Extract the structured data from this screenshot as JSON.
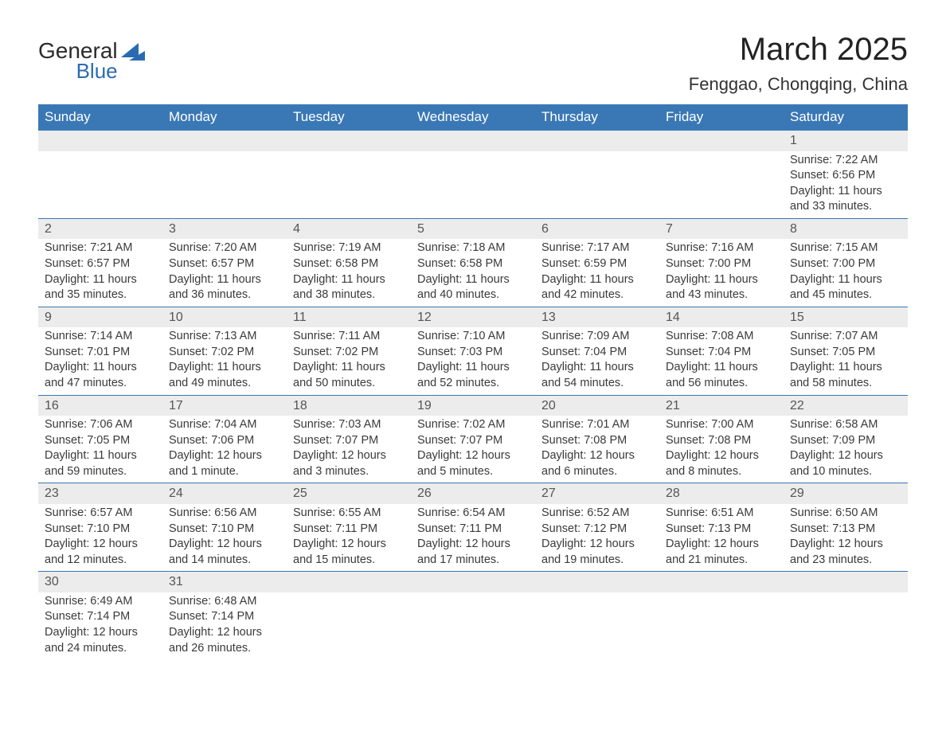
{
  "logo": {
    "text1": "General",
    "text2": "Blue",
    "text1_color": "#2b2b2b",
    "text2_color": "#2a6bb0",
    "mark_color": "#2a6bb0"
  },
  "title": {
    "month": "March 2025",
    "location": "Fenggao, Chongqing, China",
    "month_fontsize": 40,
    "location_fontsize": 22
  },
  "colors": {
    "header_bg": "#3a78b5",
    "header_text": "#ffffff",
    "daynum_bg": "#ececec",
    "row_divider": "#3a78b5",
    "body_text": "#3a3a3a",
    "background": "#ffffff"
  },
  "typography": {
    "header_fontsize": 17,
    "cell_fontsize": 14.5,
    "daynum_fontsize": 16,
    "font_family": "Arial"
  },
  "calendar": {
    "day_headers": [
      "Sunday",
      "Monday",
      "Tuesday",
      "Wednesday",
      "Thursday",
      "Friday",
      "Saturday"
    ],
    "weeks": [
      [
        null,
        null,
        null,
        null,
        null,
        null,
        {
          "n": "1",
          "sunrise": "Sunrise: 7:22 AM",
          "sunset": "Sunset: 6:56 PM",
          "dl1": "Daylight: 11 hours",
          "dl2": "and 33 minutes."
        }
      ],
      [
        {
          "n": "2",
          "sunrise": "Sunrise: 7:21 AM",
          "sunset": "Sunset: 6:57 PM",
          "dl1": "Daylight: 11 hours",
          "dl2": "and 35 minutes."
        },
        {
          "n": "3",
          "sunrise": "Sunrise: 7:20 AM",
          "sunset": "Sunset: 6:57 PM",
          "dl1": "Daylight: 11 hours",
          "dl2": "and 36 minutes."
        },
        {
          "n": "4",
          "sunrise": "Sunrise: 7:19 AM",
          "sunset": "Sunset: 6:58 PM",
          "dl1": "Daylight: 11 hours",
          "dl2": "and 38 minutes."
        },
        {
          "n": "5",
          "sunrise": "Sunrise: 7:18 AM",
          "sunset": "Sunset: 6:58 PM",
          "dl1": "Daylight: 11 hours",
          "dl2": "and 40 minutes."
        },
        {
          "n": "6",
          "sunrise": "Sunrise: 7:17 AM",
          "sunset": "Sunset: 6:59 PM",
          "dl1": "Daylight: 11 hours",
          "dl2": "and 42 minutes."
        },
        {
          "n": "7",
          "sunrise": "Sunrise: 7:16 AM",
          "sunset": "Sunset: 7:00 PM",
          "dl1": "Daylight: 11 hours",
          "dl2": "and 43 minutes."
        },
        {
          "n": "8",
          "sunrise": "Sunrise: 7:15 AM",
          "sunset": "Sunset: 7:00 PM",
          "dl1": "Daylight: 11 hours",
          "dl2": "and 45 minutes."
        }
      ],
      [
        {
          "n": "9",
          "sunrise": "Sunrise: 7:14 AM",
          "sunset": "Sunset: 7:01 PM",
          "dl1": "Daylight: 11 hours",
          "dl2": "and 47 minutes."
        },
        {
          "n": "10",
          "sunrise": "Sunrise: 7:13 AM",
          "sunset": "Sunset: 7:02 PM",
          "dl1": "Daylight: 11 hours",
          "dl2": "and 49 minutes."
        },
        {
          "n": "11",
          "sunrise": "Sunrise: 7:11 AM",
          "sunset": "Sunset: 7:02 PM",
          "dl1": "Daylight: 11 hours",
          "dl2": "and 50 minutes."
        },
        {
          "n": "12",
          "sunrise": "Sunrise: 7:10 AM",
          "sunset": "Sunset: 7:03 PM",
          "dl1": "Daylight: 11 hours",
          "dl2": "and 52 minutes."
        },
        {
          "n": "13",
          "sunrise": "Sunrise: 7:09 AM",
          "sunset": "Sunset: 7:04 PM",
          "dl1": "Daylight: 11 hours",
          "dl2": "and 54 minutes."
        },
        {
          "n": "14",
          "sunrise": "Sunrise: 7:08 AM",
          "sunset": "Sunset: 7:04 PM",
          "dl1": "Daylight: 11 hours",
          "dl2": "and 56 minutes."
        },
        {
          "n": "15",
          "sunrise": "Sunrise: 7:07 AM",
          "sunset": "Sunset: 7:05 PM",
          "dl1": "Daylight: 11 hours",
          "dl2": "and 58 minutes."
        }
      ],
      [
        {
          "n": "16",
          "sunrise": "Sunrise: 7:06 AM",
          "sunset": "Sunset: 7:05 PM",
          "dl1": "Daylight: 11 hours",
          "dl2": "and 59 minutes."
        },
        {
          "n": "17",
          "sunrise": "Sunrise: 7:04 AM",
          "sunset": "Sunset: 7:06 PM",
          "dl1": "Daylight: 12 hours",
          "dl2": "and 1 minute."
        },
        {
          "n": "18",
          "sunrise": "Sunrise: 7:03 AM",
          "sunset": "Sunset: 7:07 PM",
          "dl1": "Daylight: 12 hours",
          "dl2": "and 3 minutes."
        },
        {
          "n": "19",
          "sunrise": "Sunrise: 7:02 AM",
          "sunset": "Sunset: 7:07 PM",
          "dl1": "Daylight: 12 hours",
          "dl2": "and 5 minutes."
        },
        {
          "n": "20",
          "sunrise": "Sunrise: 7:01 AM",
          "sunset": "Sunset: 7:08 PM",
          "dl1": "Daylight: 12 hours",
          "dl2": "and 6 minutes."
        },
        {
          "n": "21",
          "sunrise": "Sunrise: 7:00 AM",
          "sunset": "Sunset: 7:08 PM",
          "dl1": "Daylight: 12 hours",
          "dl2": "and 8 minutes."
        },
        {
          "n": "22",
          "sunrise": "Sunrise: 6:58 AM",
          "sunset": "Sunset: 7:09 PM",
          "dl1": "Daylight: 12 hours",
          "dl2": "and 10 minutes."
        }
      ],
      [
        {
          "n": "23",
          "sunrise": "Sunrise: 6:57 AM",
          "sunset": "Sunset: 7:10 PM",
          "dl1": "Daylight: 12 hours",
          "dl2": "and 12 minutes."
        },
        {
          "n": "24",
          "sunrise": "Sunrise: 6:56 AM",
          "sunset": "Sunset: 7:10 PM",
          "dl1": "Daylight: 12 hours",
          "dl2": "and 14 minutes."
        },
        {
          "n": "25",
          "sunrise": "Sunrise: 6:55 AM",
          "sunset": "Sunset: 7:11 PM",
          "dl1": "Daylight: 12 hours",
          "dl2": "and 15 minutes."
        },
        {
          "n": "26",
          "sunrise": "Sunrise: 6:54 AM",
          "sunset": "Sunset: 7:11 PM",
          "dl1": "Daylight: 12 hours",
          "dl2": "and 17 minutes."
        },
        {
          "n": "27",
          "sunrise": "Sunrise: 6:52 AM",
          "sunset": "Sunset: 7:12 PM",
          "dl1": "Daylight: 12 hours",
          "dl2": "and 19 minutes."
        },
        {
          "n": "28",
          "sunrise": "Sunrise: 6:51 AM",
          "sunset": "Sunset: 7:13 PM",
          "dl1": "Daylight: 12 hours",
          "dl2": "and 21 minutes."
        },
        {
          "n": "29",
          "sunrise": "Sunrise: 6:50 AM",
          "sunset": "Sunset: 7:13 PM",
          "dl1": "Daylight: 12 hours",
          "dl2": "and 23 minutes."
        }
      ],
      [
        {
          "n": "30",
          "sunrise": "Sunrise: 6:49 AM",
          "sunset": "Sunset: 7:14 PM",
          "dl1": "Daylight: 12 hours",
          "dl2": "and 24 minutes."
        },
        {
          "n": "31",
          "sunrise": "Sunrise: 6:48 AM",
          "sunset": "Sunset: 7:14 PM",
          "dl1": "Daylight: 12 hours",
          "dl2": "and 26 minutes."
        },
        null,
        null,
        null,
        null,
        null
      ]
    ]
  }
}
